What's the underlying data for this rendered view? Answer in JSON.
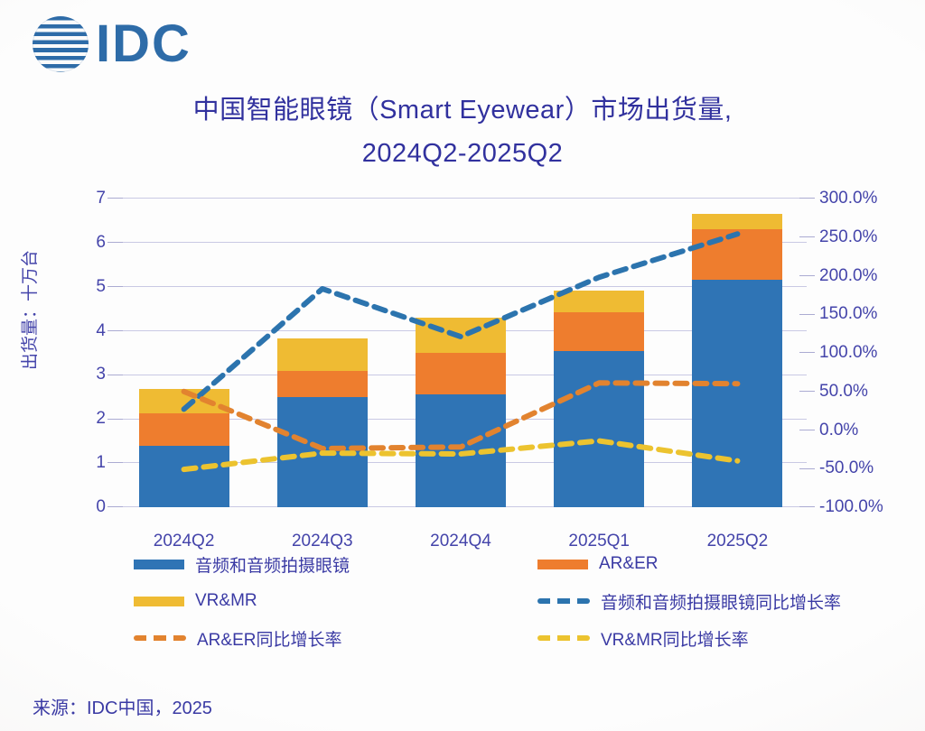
{
  "logo": {
    "brand": "IDC"
  },
  "title": {
    "line1": "中国智能眼镜（Smart Eyewear）市场出货量,",
    "line2": "2024Q2-2025Q2"
  },
  "source": "来源：IDC中国，2025",
  "colors": {
    "bar_blue": "#2F74B5",
    "bar_orange": "#EE7D2E",
    "bar_yellow": "#EFBB33",
    "line_blue": "#2C74AE",
    "line_orange": "#E2832F",
    "line_yellow": "#ECC32F",
    "grid": "#C9C9E4",
    "axis_text": "#4444AA",
    "title_text": "#31319E",
    "logo_blue": "#2E6CA8"
  },
  "chart_data": {
    "type": "bar+line",
    "stacked": true,
    "categories": [
      "2024Q2",
      "2024Q3",
      "2024Q4",
      "2025Q1",
      "2025Q2"
    ],
    "bar_series": [
      {
        "name": "音频和音频拍摄眼镜",
        "axis": "left",
        "color": "#2F74B5",
        "values": [
          1.4,
          2.5,
          2.55,
          3.55,
          5.15
        ]
      },
      {
        "name": "AR&ER",
        "axis": "left",
        "color": "#EE7D2E",
        "values": [
          0.73,
          0.6,
          0.95,
          0.88,
          1.15
        ]
      },
      {
        "name": "VR&MR",
        "axis": "left",
        "color": "#EFBB33",
        "values": [
          0.55,
          0.72,
          0.8,
          0.48,
          0.35
        ]
      }
    ],
    "line_series": [
      {
        "name": "音频和音频拍摄眼镜同比增长率",
        "axis": "right",
        "style": "dashed",
        "color": "#2C74AE",
        "values_pct": [
          27,
          183,
          121,
          198,
          254
        ]
      },
      {
        "name": "AR&ER同比增长率",
        "axis": "right",
        "style": "dashed",
        "color": "#E2832F",
        "values_pct": [
          50,
          -24,
          -22,
          61,
          60
        ]
      },
      {
        "name": "VR&MR同比增长率",
        "axis": "right",
        "style": "dashed",
        "color": "#ECC32F",
        "values_pct": [
          -51,
          -30,
          -31,
          -14,
          -40
        ]
      }
    ],
    "ylabel": "出货量：十万台",
    "y_axis": {
      "min": 0,
      "max": 7,
      "ticks": [
        "0",
        "1",
        "2",
        "3",
        "4",
        "5",
        "6",
        "7"
      ]
    },
    "y2_axis": {
      "min": -100,
      "max": 300,
      "ticks": [
        "300.0%",
        "250.0%",
        "200.0%",
        "150.0%",
        "100.0%",
        "50.0%",
        "0.0%",
        "-50.0%",
        "-100.0%"
      ]
    },
    "grid": true,
    "legend_position": "bottom"
  },
  "legend": {
    "items": [
      {
        "key": "audio-glasses",
        "label": "音频和音频拍摄眼镜",
        "swatch": "rect",
        "color": "#2F74B5"
      },
      {
        "key": "ar-er",
        "label": "AR&ER",
        "swatch": "rect",
        "color": "#EE7D2E"
      },
      {
        "key": "vr-mr",
        "label": "VR&MR",
        "swatch": "rect",
        "color": "#EFBB33"
      },
      {
        "key": "audio-glasses-yoy",
        "label": "音频和音频拍摄眼镜同比增长率",
        "swatch": "dash",
        "color": "#2C74AE"
      },
      {
        "key": "ar-er-yoy",
        "label": "AR&ER同比增长率",
        "swatch": "dash",
        "color": "#E2832F"
      },
      {
        "key": "vr-mr-yoy",
        "label": "VR&MR同比增长率",
        "swatch": "dash",
        "color": "#ECC32F"
      }
    ]
  }
}
